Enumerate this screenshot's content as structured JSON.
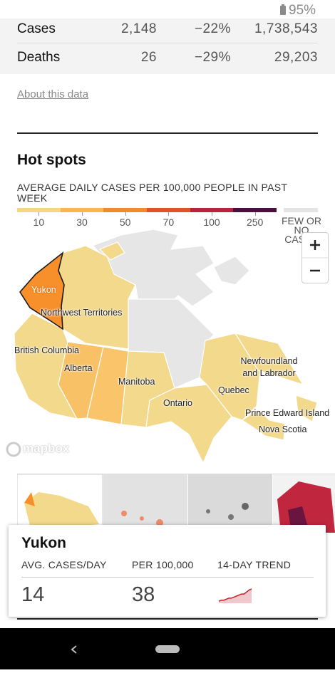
{
  "status_bar": {
    "battery": "95%"
  },
  "stats": {
    "rows": [
      [
        "Cases",
        "2,148",
        "−22%",
        "1,738,543"
      ],
      [
        "Deaths",
        "26",
        "−29%",
        "29,203"
      ]
    ]
  },
  "about_link": "About this data",
  "section_title": "Hot spots",
  "legend": {
    "title": "AVERAGE DAILY CASES PER 100,000 PEOPLE IN PAST WEEK",
    "colors": [
      "#f4d784",
      "#f8b550",
      "#f08a2e",
      "#de5329",
      "#b8243f",
      "#4a0f3e"
    ],
    "ticks": [
      "10",
      "30",
      "50",
      "70",
      "100",
      "250"
    ],
    "no_data_label": "FEW OR NO CASES",
    "no_data_color": "#e4e4e4"
  },
  "map": {
    "labels": [
      "Yukon",
      "Northwest Territories",
      "British Columbia",
      "Alberta",
      "Manitoba",
      "Ontario",
      "Quebec",
      "Newfoundland and Labrador",
      "Prince Edward Island",
      "Nova Scotia"
    ],
    "logo": "mapbox"
  },
  "card": {
    "title": "Yukon",
    "headers": [
      "AVG. CASES/DAY",
      "PER 100,000",
      "14-DAY TREND"
    ],
    "values": [
      "14",
      "38"
    ],
    "trend": [
      2,
      3,
      3,
      4,
      5,
      5,
      6,
      7,
      8,
      9,
      9,
      11,
      13,
      14
    ],
    "trend_color": "#c4202c"
  }
}
